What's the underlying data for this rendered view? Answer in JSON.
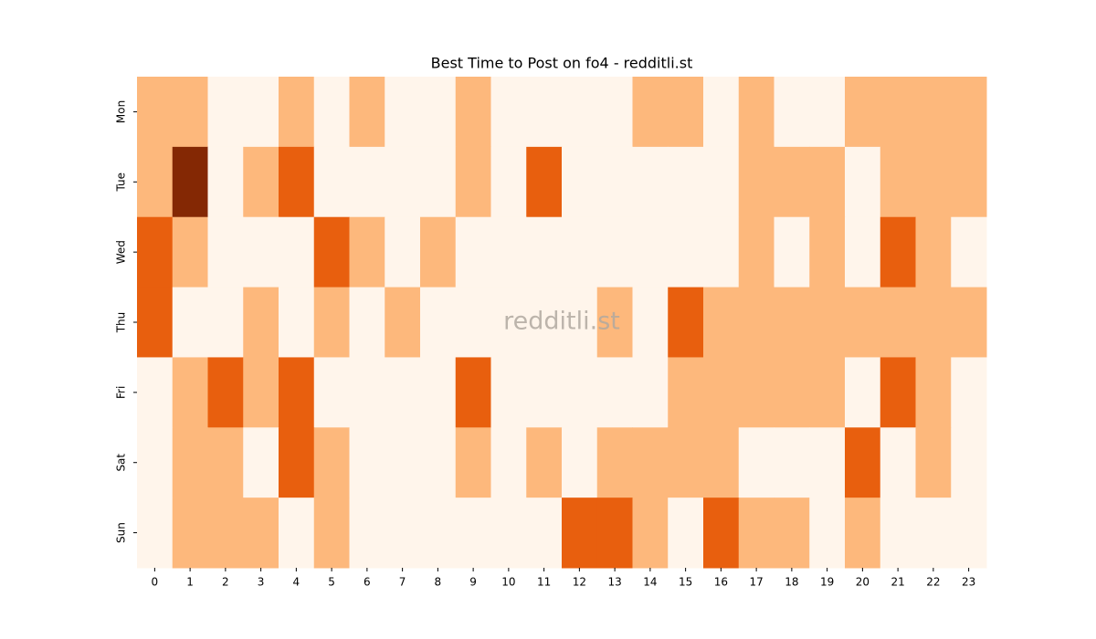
{
  "chart_data": {
    "type": "heatmap",
    "title": "Best Time to Post on fo4 - redditli.st",
    "watermark": "redditli.st",
    "x_categories": [
      "0",
      "1",
      "2",
      "3",
      "4",
      "5",
      "6",
      "7",
      "8",
      "9",
      "10",
      "11",
      "12",
      "13",
      "14",
      "15",
      "16",
      "17",
      "18",
      "19",
      "20",
      "21",
      "22",
      "23"
    ],
    "y_categories": [
      "Mon",
      "Tue",
      "Wed",
      "Thu",
      "Fri",
      "Sat",
      "Sun"
    ],
    "colors": [
      "#fff5eb",
      "#fdb87c",
      "#e85f0e",
      "#842804"
    ],
    "values": [
      [
        1,
        1,
        0,
        0,
        1,
        0,
        1,
        0,
        0,
        1,
        0,
        0,
        0,
        0,
        1,
        1,
        0,
        1,
        0,
        0,
        1,
        1,
        1,
        1
      ],
      [
        1,
        3,
        0,
        1,
        2,
        0,
        0,
        0,
        0,
        1,
        0,
        2,
        0,
        0,
        0,
        0,
        0,
        1,
        1,
        1,
        0,
        1,
        1,
        1
      ],
      [
        2,
        1,
        0,
        0,
        0,
        2,
        1,
        0,
        1,
        0,
        0,
        0,
        0,
        0,
        0,
        0,
        0,
        1,
        0,
        1,
        0,
        2,
        1,
        0
      ],
      [
        2,
        0,
        0,
        1,
        0,
        1,
        0,
        1,
        0,
        0,
        0,
        0,
        0,
        1,
        0,
        2,
        1,
        1,
        1,
        1,
        1,
        1,
        1,
        1
      ],
      [
        0,
        1,
        2,
        1,
        2,
        0,
        0,
        0,
        0,
        2,
        0,
        0,
        0,
        0,
        0,
        1,
        1,
        1,
        1,
        1,
        0,
        2,
        1,
        0
      ],
      [
        0,
        1,
        1,
        0,
        2,
        1,
        0,
        0,
        0,
        1,
        0,
        1,
        0,
        1,
        1,
        1,
        1,
        0,
        0,
        0,
        2,
        0,
        1,
        0
      ],
      [
        0,
        1,
        1,
        1,
        0,
        1,
        0,
        0,
        0,
        0,
        0,
        0,
        2,
        2,
        1,
        0,
        2,
        1,
        1,
        0,
        1,
        0,
        0,
        0
      ]
    ]
  }
}
